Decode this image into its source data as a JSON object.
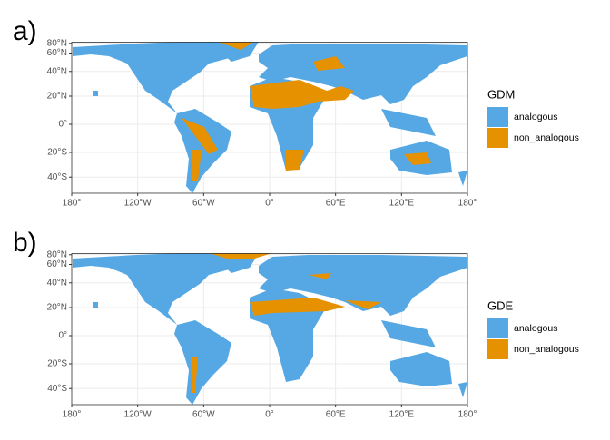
{
  "panels": [
    {
      "label": "a)",
      "projection": "cylindrical-equal-area",
      "legend": {
        "title": "GDM",
        "entries": [
          {
            "name": "analogous",
            "color": "#56a8e4"
          },
          {
            "name": "non_analogous",
            "color": "#e69100"
          }
        ]
      },
      "xlim": [
        -180,
        180
      ],
      "ylim": [
        -57,
        88
      ],
      "xticks": [
        {
          "value": -180,
          "label": "180°"
        },
        {
          "value": -120,
          "label": "120°W"
        },
        {
          "value": -60,
          "label": "60°W"
        },
        {
          "value": 0,
          "label": "0°"
        },
        {
          "value": 60,
          "label": "60°E"
        },
        {
          "value": 120,
          "label": "120°E"
        },
        {
          "value": 180,
          "label": "180°"
        }
      ],
      "yticks": [
        {
          "value": 80,
          "label": "80°N"
        },
        {
          "value": 60,
          "label": "60°N"
        },
        {
          "value": 40,
          "label": "40°N"
        },
        {
          "value": 20,
          "label": "20°N"
        },
        {
          "value": 0,
          "label": "0°"
        },
        {
          "value": -20,
          "label": "20°S"
        },
        {
          "value": -40,
          "label": "40°S"
        }
      ]
    },
    {
      "label": "b)",
      "projection": "cylindrical-equal-area",
      "legend": {
        "title": "GDE",
        "entries": [
          {
            "name": "analogous",
            "color": "#56a8e4"
          },
          {
            "name": "non_analogous",
            "color": "#e69100"
          }
        ]
      },
      "xlim": [
        -180,
        180
      ],
      "ylim": [
        -57,
        88
      ],
      "xticks": [
        {
          "value": -180,
          "label": "180°"
        },
        {
          "value": -120,
          "label": "120°W"
        },
        {
          "value": -60,
          "label": "60°W"
        },
        {
          "value": 0,
          "label": "0°"
        },
        {
          "value": 60,
          "label": "60°E"
        },
        {
          "value": 120,
          "label": "120°E"
        },
        {
          "value": 180,
          "label": "180°"
        }
      ],
      "yticks": [
        {
          "value": 80,
          "label": "80°N"
        },
        {
          "value": 60,
          "label": "60°N"
        },
        {
          "value": 40,
          "label": "40°N"
        },
        {
          "value": 20,
          "label": "20°N"
        },
        {
          "value": 0,
          "label": "0°"
        },
        {
          "value": -20,
          "label": "20°S"
        },
        {
          "value": -40,
          "label": "40°S"
        }
      ]
    }
  ]
}
